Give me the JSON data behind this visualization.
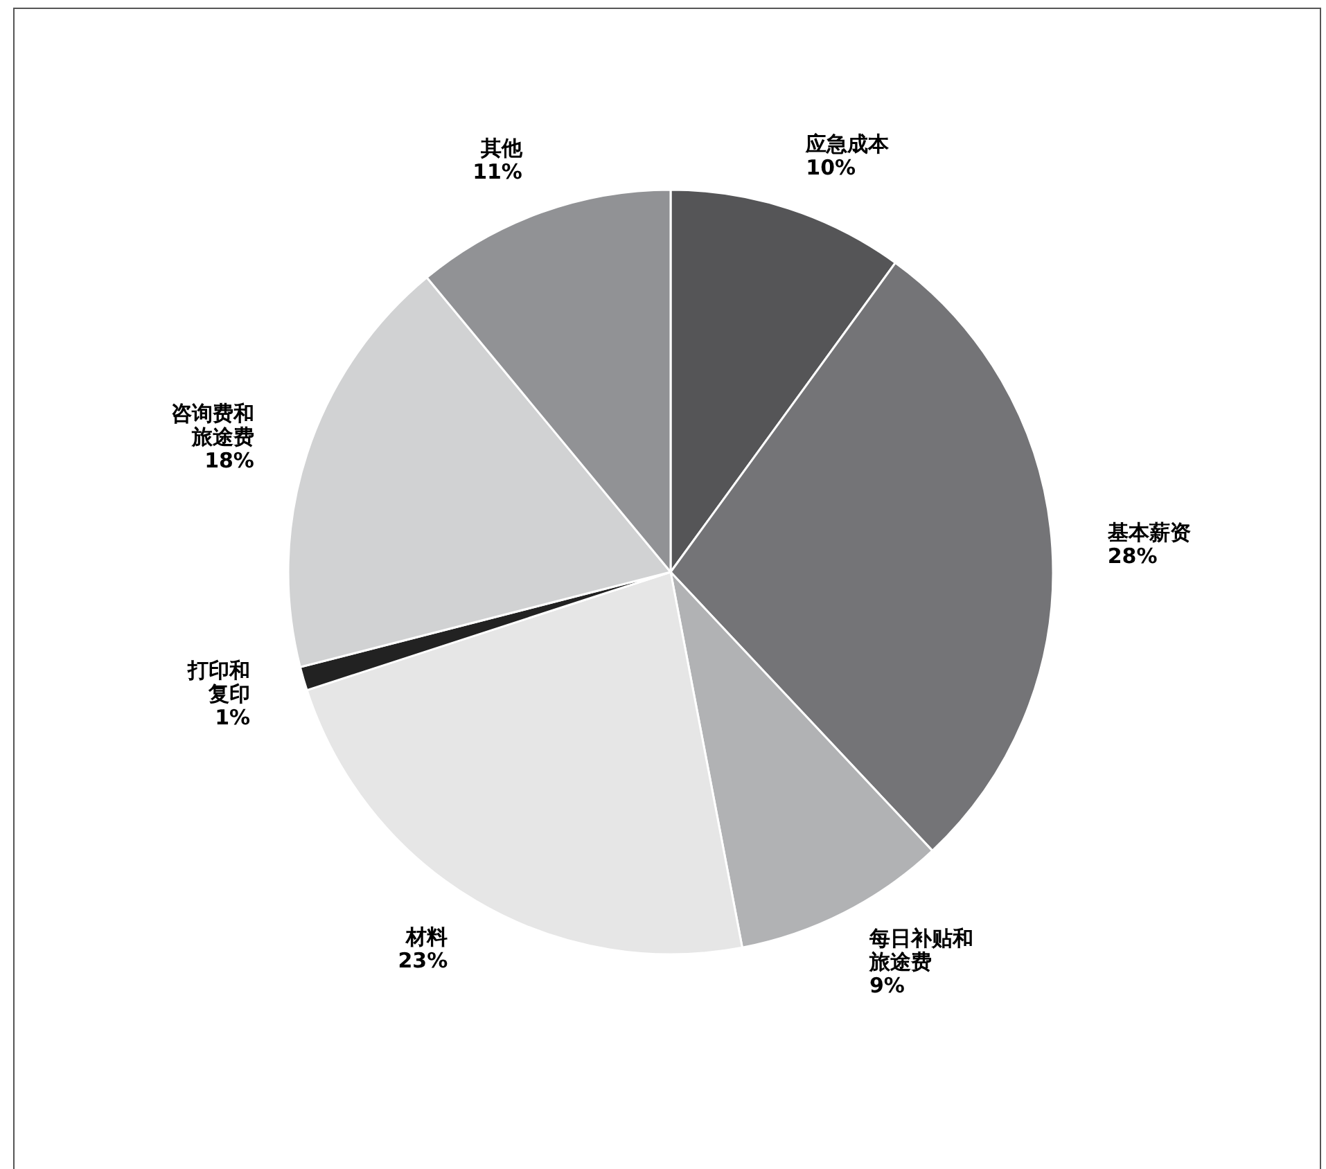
{
  "chart_data": {
    "type": "pie",
    "categories": [
      "应急成本",
      "基本薪资",
      "每日补贴和旅途费",
      "材料",
      "打印和复印",
      "咨询费和旅途费",
      "其他"
    ],
    "values": [
      10,
      28,
      9,
      23,
      1,
      18,
      11
    ],
    "colors": [
      "#555557",
      "#747477",
      "#b1b2b4",
      "#e6e6e6",
      "#222222",
      "#d1d2d3",
      "#919295"
    ],
    "value_labels": [
      "10%",
      "28%",
      "9%",
      "23%",
      "1%",
      "18%",
      "11%"
    ]
  }
}
